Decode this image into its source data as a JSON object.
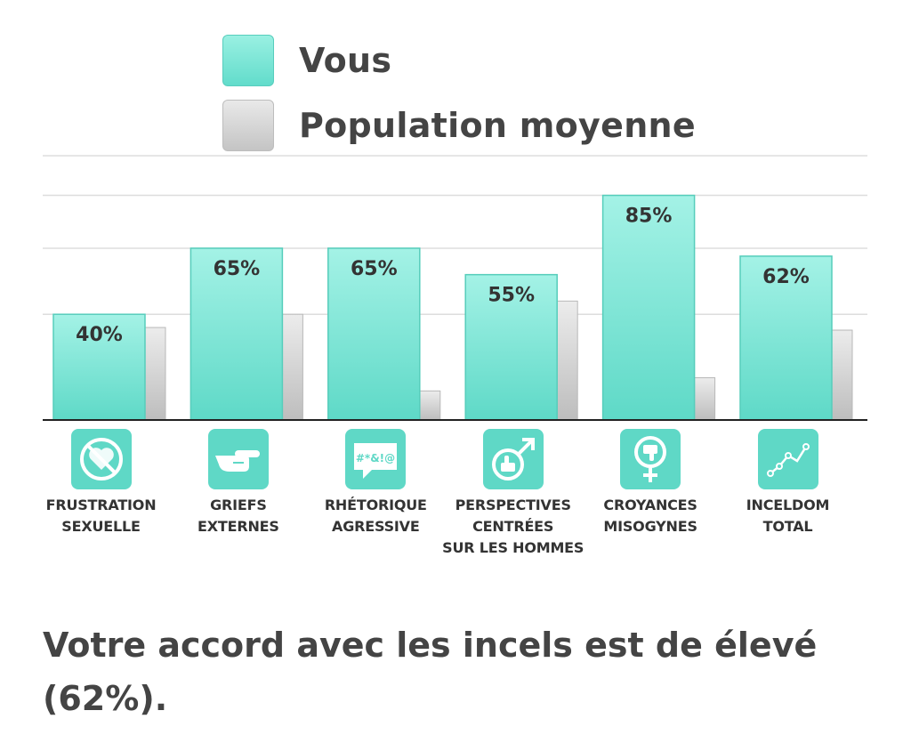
{
  "legend": {
    "vous": "Vous",
    "population": "Population moyenne"
  },
  "colors": {
    "vous_top": "#a4f2e6",
    "vous_bottom": "#5ed9c7",
    "population_top": "#ececec",
    "population_bottom": "#bdbdbd",
    "icon_bg": "#5fd8c6",
    "text": "#444444",
    "grid": "#dddddd",
    "axis": "#222222"
  },
  "chart_data": {
    "type": "bar",
    "categories": [
      "FRUSTRATION SEXUELLE",
      "GRIEFS EXTERNES",
      "RHÉTORIQUE AGRESSIVE",
      "PERSPECTIVES CENTRÉES SUR LES HOMMES",
      "CROYANCES MISOGYNES",
      "INCELDOM TOTAL"
    ],
    "category_lines": [
      [
        "FRUSTRATION",
        "SEXUELLE"
      ],
      [
        "GRIEFS",
        "EXTERNES"
      ],
      [
        "RHÉTORIQUE",
        "AGRESSIVE"
      ],
      [
        "PERSPECTIVES",
        "CENTRÉES",
        "SUR LES HOMMES"
      ],
      [
        "CROYANCES",
        "MISOGYNES"
      ],
      [
        "INCELDOM",
        "TOTAL"
      ]
    ],
    "icons": [
      "no-heart-icon",
      "pointing-hand-icon",
      "swear-bubble-icon",
      "male-thumbs-up-icon",
      "female-thumbs-down-icon",
      "line-chart-icon"
    ],
    "series": [
      {
        "name": "Vous",
        "values": [
          40,
          65,
          65,
          55,
          85,
          62
        ],
        "labels": [
          "40%",
          "65%",
          "65%",
          "55%",
          "85%",
          "62%"
        ]
      },
      {
        "name": "Population moyenne",
        "values": [
          35,
          40,
          11,
          45,
          16,
          34
        ]
      }
    ],
    "ylim": [
      0,
      100
    ],
    "grid": true,
    "legend_position": "top-center"
  },
  "result_text": "Votre accord avec les incels est de élevé (62%)."
}
